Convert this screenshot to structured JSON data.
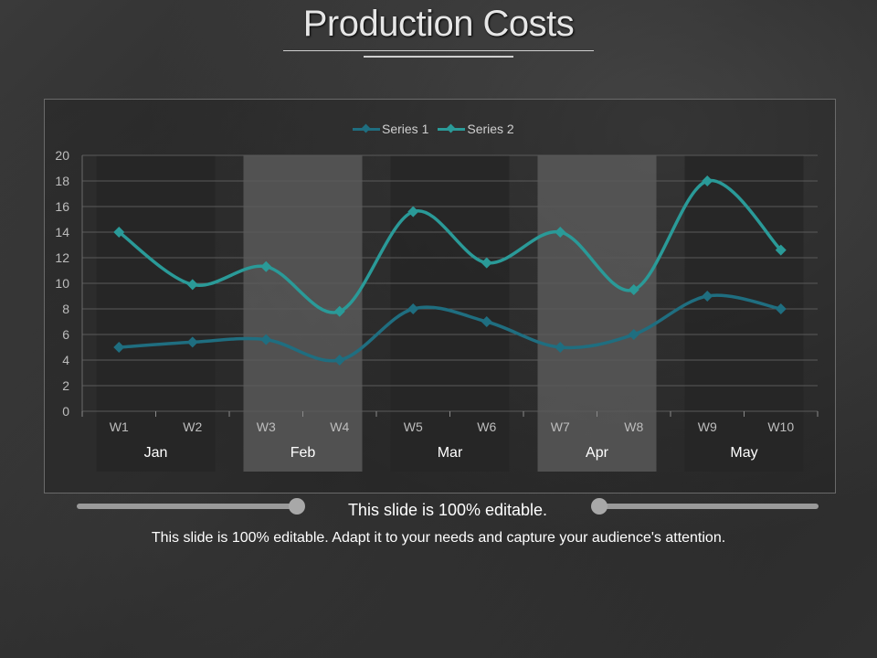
{
  "title": "Production Costs",
  "subtitle": "This slide is 100% editable.",
  "caption": "This slide is 100% editable. Adapt it to your needs and capture your audience's attention.",
  "colors": {
    "series1": "#1f6e80",
    "series2": "#2a9a98",
    "band_dark": "#262626",
    "band_light": "#5f5f5f"
  },
  "chart_data": {
    "type": "line",
    "title": "",
    "xlabel": "",
    "ylabel": "",
    "ylim": [
      0,
      20
    ],
    "yticks": [
      0,
      2,
      4,
      6,
      8,
      10,
      12,
      14,
      16,
      18,
      20
    ],
    "grid": true,
    "legend_position": "top",
    "categories": [
      "W1",
      "W2",
      "W3",
      "W4",
      "W5",
      "W6",
      "W7",
      "W8",
      "W9",
      "W10"
    ],
    "groups": [
      {
        "label": "Jan",
        "categories": [
          "W1",
          "W2"
        ]
      },
      {
        "label": "Feb",
        "categories": [
          "W3",
          "W4"
        ]
      },
      {
        "label": "Mar",
        "categories": [
          "W5",
          "W6"
        ]
      },
      {
        "label": "Apr",
        "categories": [
          "W7",
          "W8"
        ]
      },
      {
        "label": "May",
        "categories": [
          "W9",
          "W10"
        ]
      }
    ],
    "series": [
      {
        "name": "Series 1",
        "values": [
          5,
          5.4,
          5.6,
          4,
          8,
          7,
          5,
          6,
          9,
          8
        ]
      },
      {
        "name": "Series 2",
        "values": [
          14,
          9.9,
          11.3,
          7.8,
          15.6,
          11.6,
          14,
          9.5,
          18,
          12.6
        ]
      }
    ]
  }
}
